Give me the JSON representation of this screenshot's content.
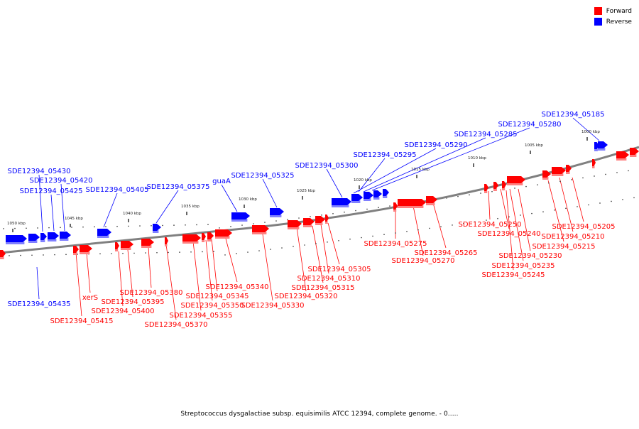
{
  "legend": {
    "forward": {
      "label": "Forward",
      "color": "#ff0000"
    },
    "reverse": {
      "label": "Reverse",
      "color": "#0000ff"
    }
  },
  "caption": "Streptococcus dysgalactiae subsp. equisimilis ATCC 12394, complete genome. - 0.....",
  "ticks": [
    "1050 kbp",
    "1045 kbp",
    "1040 kbp",
    "1035 kbp",
    "1030 kbp",
    "1025 kbp",
    "1020 kbp",
    "1015 kbp",
    "1010 kbp",
    "1005 kbp",
    "1000 kbp"
  ],
  "reverse_genes": [
    "SDE12394_05185",
    "SDE12394_05280",
    "SDE12394_05285",
    "SDE12394_05290",
    "SDE12394_05295",
    "SDE12394_05300",
    "SDE12394_05325",
    "guaA",
    "SDE12394_05375",
    "SDE12394_05405",
    "SDE12394_05425",
    "SDE12394_05420",
    "SDE12394_05430",
    "SDE12394_05435"
  ],
  "forward_genes": [
    "SDE12394_05205",
    "SDE12394_05210",
    "SDE12394_05215",
    "SDE12394_05230",
    "SDE12394_05235",
    "SDE12394_05245",
    "SDE12394_05240",
    "SDE12394_05250",
    "SDE12394_05265",
    "SDE12394_05270",
    "SDE12394_05275",
    "SDE12394_05305",
    "SDE12394_05310",
    "SDE12394_05315",
    "SDE12394_05320",
    "SDE12394_05330",
    "SDE12394_05340",
    "SDE12394_05345",
    "SDE12394_05350",
    "SDE12394_05355",
    "SDE12394_05370",
    "SDE12394_05380",
    "SDE12394_05395",
    "SDE12394_05400",
    "xerS",
    "SDE12394_05415"
  ]
}
